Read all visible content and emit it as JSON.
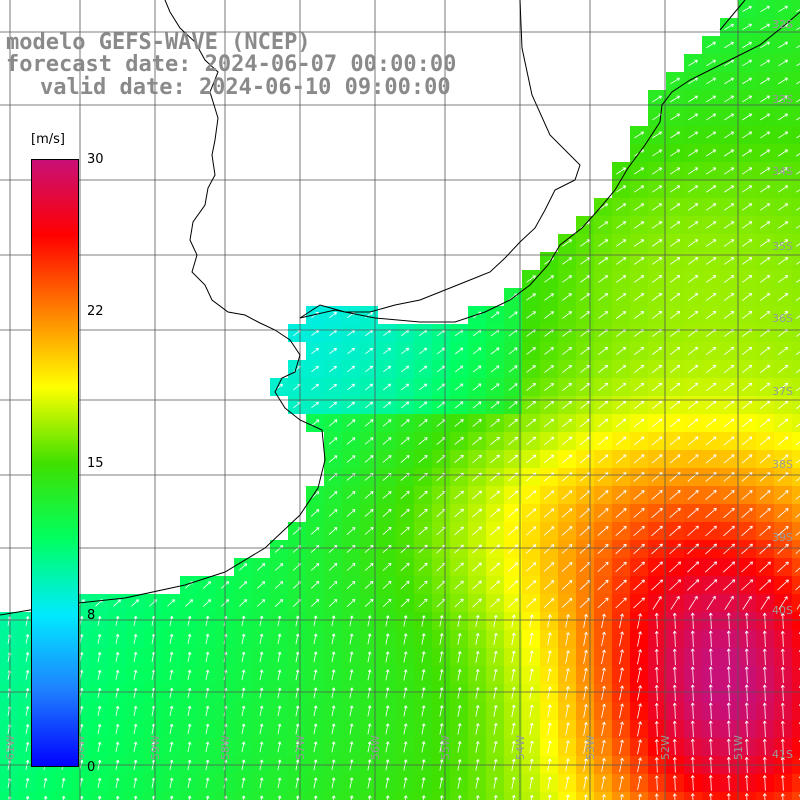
{
  "title": {
    "model": "modelo GEFS-WAVE (NCEP)",
    "forecast": "forecast date: 2024-06-07 00:00:00",
    "valid": "valid date: 2024-06-10 09:00:00"
  },
  "colorbar": {
    "units": "[m/s]",
    "ticks": [
      "30",
      "22",
      "15",
      "8",
      "0"
    ],
    "min": 0,
    "max": 30,
    "colors": [
      "#0000ff",
      "#1e7fff",
      "#00eaff",
      "#00ff60",
      "#40e000",
      "#ffff00",
      "#ff8000",
      "#ff0000",
      "#c81078"
    ]
  },
  "map": {
    "lat_labels": [
      "32S",
      "33S",
      "34S",
      "35S",
      "36S",
      "37S",
      "38S",
      "39S",
      "40S",
      "41S"
    ],
    "lon_labels": [
      "61W",
      "60W",
      "59W",
      "58W",
      "57W",
      "56W",
      "55W",
      "54W",
      "53W",
      "52W",
      "51W"
    ],
    "colors": {
      "land": "#ffffff",
      "coast": "#000000",
      "grid": "#555555",
      "arrow": "#ffffff"
    }
  }
}
